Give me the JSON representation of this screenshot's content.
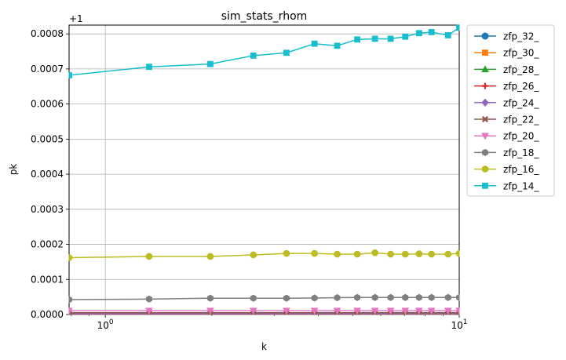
{
  "chart_data": {
    "type": "line",
    "title": "sim_stats_rhom",
    "xlabel": "k",
    "ylabel": "pk",
    "xscale": "log",
    "xlim": [
      0.79,
      10
    ],
    "ylim": [
      0.0,
      0.000825
    ],
    "y_offset_label": "+1",
    "xticks": [
      {
        "value": 1,
        "label": "10",
        "exp": "0"
      },
      {
        "value": 10,
        "label": "10",
        "exp": "1"
      }
    ],
    "yticks": [
      {
        "value": 0.0,
        "label": "0.0000"
      },
      {
        "value": 0.0001,
        "label": "0.0001"
      },
      {
        "value": 0.0002,
        "label": "0.0002"
      },
      {
        "value": 0.0003,
        "label": "0.0003"
      },
      {
        "value": 0.0004,
        "label": "0.0004"
      },
      {
        "value": 0.0005,
        "label": "0.0005"
      },
      {
        "value": 0.0006,
        "label": "0.0006"
      },
      {
        "value": 0.0007,
        "label": "0.0007"
      },
      {
        "value": 0.0008,
        "label": "0.0008"
      }
    ],
    "grid": true,
    "legend_position": "outside-top-right",
    "x": [
      0.79,
      1.33,
      1.98,
      2.62,
      3.25,
      3.9,
      4.52,
      5.15,
      5.78,
      6.4,
      7.04,
      7.7,
      8.35,
      9.3,
      10.0
    ],
    "series": [
      {
        "name": "zfp_32_",
        "color": "#1f77b4",
        "marker": "circle",
        "values": [
          0,
          0,
          0,
          0,
          0,
          0,
          0,
          0,
          0,
          0,
          0,
          0,
          0,
          0,
          0
        ]
      },
      {
        "name": "zfp_30_",
        "color": "#ff7f0e",
        "marker": "square",
        "values": [
          0,
          0,
          0,
          0,
          0,
          0,
          0,
          0,
          0,
          0,
          0,
          0,
          0,
          0,
          0
        ]
      },
      {
        "name": "zfp_28_",
        "color": "#2ca02c",
        "marker": "triangle-up",
        "values": [
          0,
          0,
          0,
          0,
          0,
          0,
          0,
          0,
          0,
          0,
          0,
          0,
          0,
          0,
          0
        ]
      },
      {
        "name": "zfp_26_",
        "color": "#d62728",
        "marker": "plus",
        "values": [
          1e-06,
          1e-06,
          1e-06,
          1e-06,
          1e-06,
          1e-06,
          1e-06,
          1e-06,
          1e-06,
          1e-06,
          1e-06,
          1e-06,
          1e-06,
          1e-06,
          1e-06
        ]
      },
      {
        "name": "zfp_24_",
        "color": "#9467bd",
        "marker": "diamond",
        "values": [
          2e-06,
          2e-06,
          2e-06,
          2e-06,
          2e-06,
          2e-06,
          2e-06,
          2e-06,
          2e-06,
          2e-06,
          2e-06,
          2e-06,
          2e-06,
          2e-06,
          2e-06
        ]
      },
      {
        "name": "zfp_22_",
        "color": "#8c564b",
        "marker": "x",
        "values": [
          5e-06,
          5e-06,
          5e-06,
          5e-06,
          5e-06,
          5e-06,
          5e-06,
          5e-06,
          5e-06,
          5e-06,
          5e-06,
          5e-06,
          5e-06,
          5e-06,
          5e-06
        ]
      },
      {
        "name": "zfp_20_",
        "color": "#e377c2",
        "marker": "triangle-down",
        "values": [
          1.1e-05,
          1.1e-05,
          1.1e-05,
          1.1e-05,
          1.1e-05,
          1.1e-05,
          1.1e-05,
          1.1e-05,
          1.1e-05,
          1.1e-05,
          1.1e-05,
          1.1e-05,
          1.1e-05,
          1.1e-05,
          1.1e-05
        ]
      },
      {
        "name": "zfp_18_",
        "color": "#7f7f7f",
        "marker": "hexagon",
        "values": [
          4.25e-05,
          4.4e-05,
          4.65e-05,
          4.65e-05,
          4.65e-05,
          4.7e-05,
          4.8e-05,
          4.85e-05,
          4.85e-05,
          4.85e-05,
          4.85e-05,
          4.85e-05,
          4.85e-05,
          4.85e-05,
          4.85e-05
        ]
      },
      {
        "name": "zfp_16_",
        "color": "#bcbd22",
        "marker": "octagon",
        "values": [
          0.000162,
          0.0001655,
          0.0001655,
          0.00017,
          0.000174,
          0.000174,
          0.000172,
          0.000172,
          0.000176,
          0.000172,
          0.000172,
          0.000173,
          0.000172,
          0.000172,
          0.000174
        ]
      },
      {
        "name": "zfp_14_",
        "color": "#17becf",
        "marker": "square",
        "values": [
          0.000682,
          0.000706,
          0.000714,
          0.000738,
          0.000746,
          0.000772,
          0.000766,
          0.000784,
          0.000786,
          0.000786,
          0.000792,
          0.000802,
          0.000805,
          0.000796,
          0.000818
        ]
      }
    ]
  }
}
